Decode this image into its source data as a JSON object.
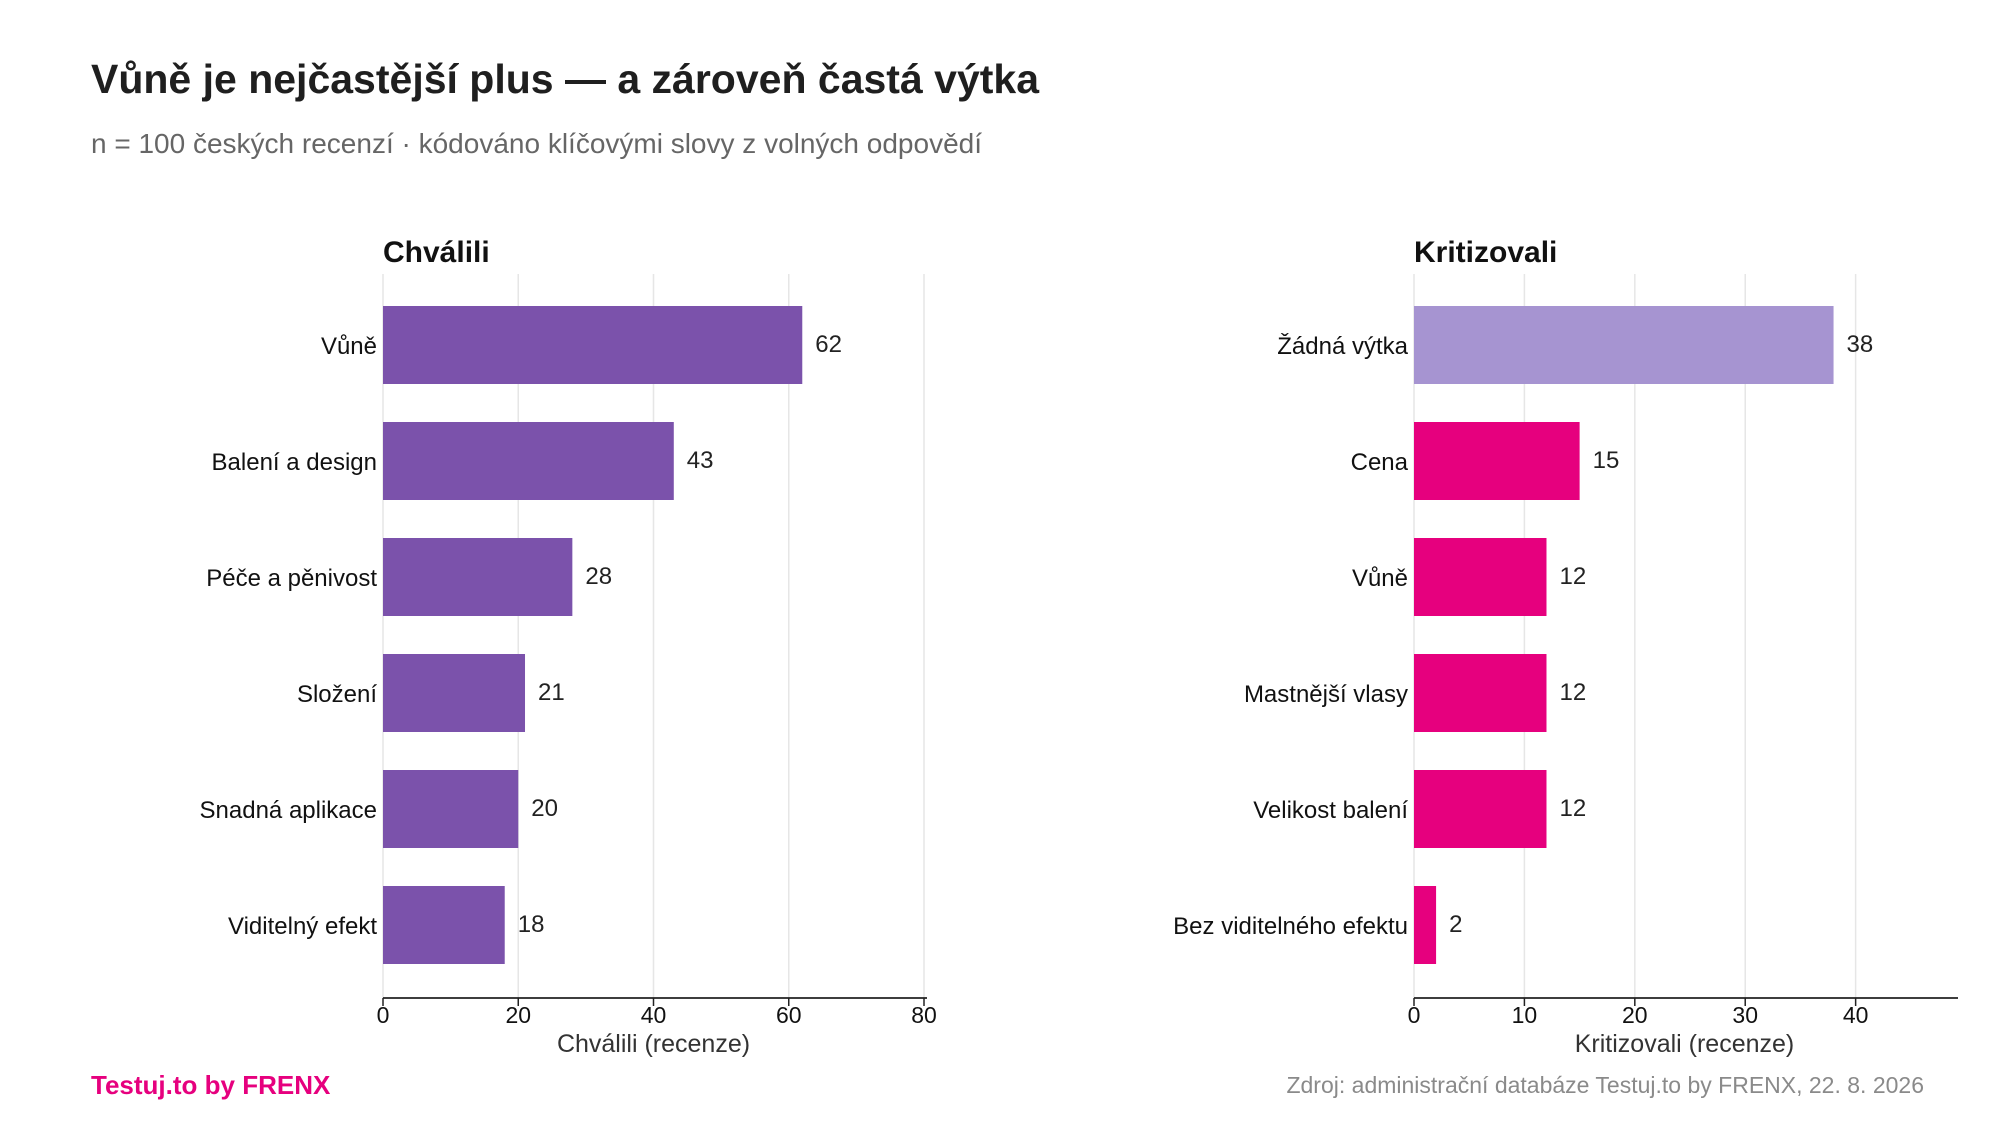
{
  "title": "Vůně je nejčastější plus — a zároveň častá výtka",
  "subtitle": "n = 100 českých recenzí · kódováno klíčovými slovy z volných odpovědí",
  "brand": "Testuj.to by FRENX",
  "source": "Zdroj: administrační databáze Testuj.to by FRENX, 22. 8. 2026",
  "chart_data": [
    {
      "type": "bar",
      "orientation": "horizontal",
      "title": "Chválili",
      "xlabel": "Chválili (recenze)",
      "xlim": [
        0,
        80
      ],
      "xticks": [
        0,
        20,
        40,
        60,
        80
      ],
      "grid": true,
      "categories": [
        "Vůně",
        "Balení a design",
        "Péče a pěnivost",
        "Složení",
        "Snadná aplikace",
        "Viditelný efekt"
      ],
      "values": [
        62,
        43,
        28,
        21,
        20,
        18
      ],
      "colors": [
        "#7b52ab",
        "#7b52ab",
        "#7b52ab",
        "#7b52ab",
        "#7b52ab",
        "#7b52ab"
      ]
    },
    {
      "type": "bar",
      "orientation": "horizontal",
      "title": "Kritizovali",
      "xlabel": "Kritizovali (recenze)",
      "xlim": [
        0,
        49
      ],
      "xticks": [
        0,
        10,
        20,
        30,
        40
      ],
      "grid": true,
      "categories": [
        "Žádná výtka",
        "Cena",
        "Vůně",
        "Mastnější vlasy",
        "Velikost balení",
        "Bez viditelného efektu"
      ],
      "values": [
        38,
        15,
        12,
        12,
        12,
        2
      ],
      "colors": [
        "#a694d1",
        "#e6007e",
        "#e6007e",
        "#e6007e",
        "#e6007e",
        "#e6007e"
      ]
    }
  ]
}
